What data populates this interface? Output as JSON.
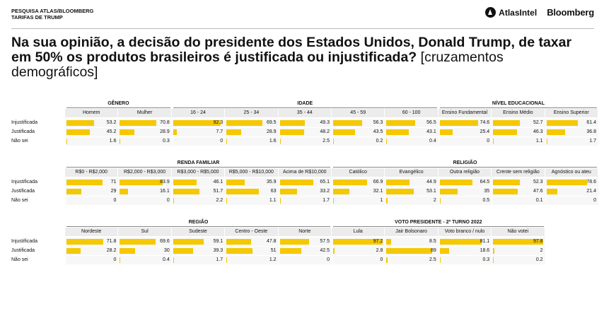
{
  "header": {
    "source_line1": "PESQUISA ATLAS/BLOOMBERG",
    "source_line2": "TARIFAS DE TRUMP",
    "atlas_logo": "AtlasIntel",
    "bloomberg_logo": "Bloomberg"
  },
  "title": {
    "question": "Na sua opinião, a decisão do presidente dos Estados Unidos, Donald Trump, de taxar em 50% os produtos brasileiros é justificada ou injustificada?",
    "subtitle": "[cruzamentos demográficos]"
  },
  "rows": [
    "Injustificada",
    "Justificada",
    "Não sei"
  ],
  "colors": {
    "bar": "#f5c800"
  },
  "tables": [
    {
      "groups": [
        {
          "label": "GÊNERO",
          "span": 2
        },
        {
          "label": "IDADE",
          "span": 5
        },
        {
          "label": "NÍVEL EDUCACIONAL",
          "span": 3
        }
      ],
      "columns": [
        "Homem",
        "Mulher",
        "16 - 24",
        "25 - 34",
        "35 - 44",
        "45 - 59",
        "60 - 100",
        "Ensino Fundamental",
        "Ensino Médio",
        "Ensino Superior"
      ],
      "values": [
        [
          "53.2",
          "70.8",
          "92.3",
          "69.5",
          "49.3",
          "56.3",
          "56.5",
          "74.6",
          "52.7",
          "61.4"
        ],
        [
          "45.2",
          "28.9",
          "7.7",
          "28.9",
          "48.2",
          "43.5",
          "43.1",
          "25.4",
          "46.3",
          "36.8"
        ],
        [
          "1.6",
          "0.3",
          "0",
          "1.6",
          "2.5",
          "0.2",
          "0.4",
          "0",
          "1.1",
          "1.7"
        ]
      ]
    },
    {
      "groups": [
        {
          "label": "RENDA FAMILIAR",
          "span": 5
        },
        {
          "label": "RELIGIÃO",
          "span": 5
        }
      ],
      "columns": [
        "R$0 - R$2,000",
        "R$2,000 - R$3,000",
        "R$3,000 - R$5,000",
        "R$5,000 - R$10,000",
        "Acima de R$10,000",
        "Católico",
        "Evangélico",
        "Outra religião",
        "Crente sem religião",
        "Agnóstico ou ateu"
      ],
      "values": [
        [
          "71",
          "83.9",
          "46.1",
          "35.9",
          "65.1",
          "66.9",
          "44.9",
          "64.5",
          "52.3",
          "78.6"
        ],
        [
          "29",
          "16.1",
          "51.7",
          "63",
          "33.2",
          "32.1",
          "53.1",
          "35",
          "47.6",
          "21.4"
        ],
        [
          "0",
          "0",
          "2.2",
          "1.1",
          "1.7",
          "1",
          "2",
          "0.5",
          "0.1",
          "0"
        ]
      ]
    },
    {
      "groups": [
        {
          "label": "REGIÃO",
          "span": 5
        },
        {
          "label": "VOTO PRESIDENTE - 2º TURNO 2022",
          "span": 4
        }
      ],
      "columns": [
        "Nordeste",
        "Sul",
        "Sudeste",
        "Centro - Oeste",
        "Norte",
        "Lula",
        "Jair Bolsonaro",
        "Voto branco / nulo",
        "Não votei"
      ],
      "values": [
        [
          "71.8",
          "69.6",
          "59.1",
          "47.8",
          "57.5",
          "97.2",
          "8.5",
          "81.1",
          "97.8"
        ],
        [
          "28.2",
          "30",
          "39.3",
          "51",
          "42.5",
          "2.8",
          "89",
          "18.6",
          "2"
        ],
        [
          "0",
          "0.4",
          "1.7",
          "1.2",
          "0",
          "0",
          "2.5",
          "0.3",
          "0.2"
        ]
      ]
    }
  ]
}
